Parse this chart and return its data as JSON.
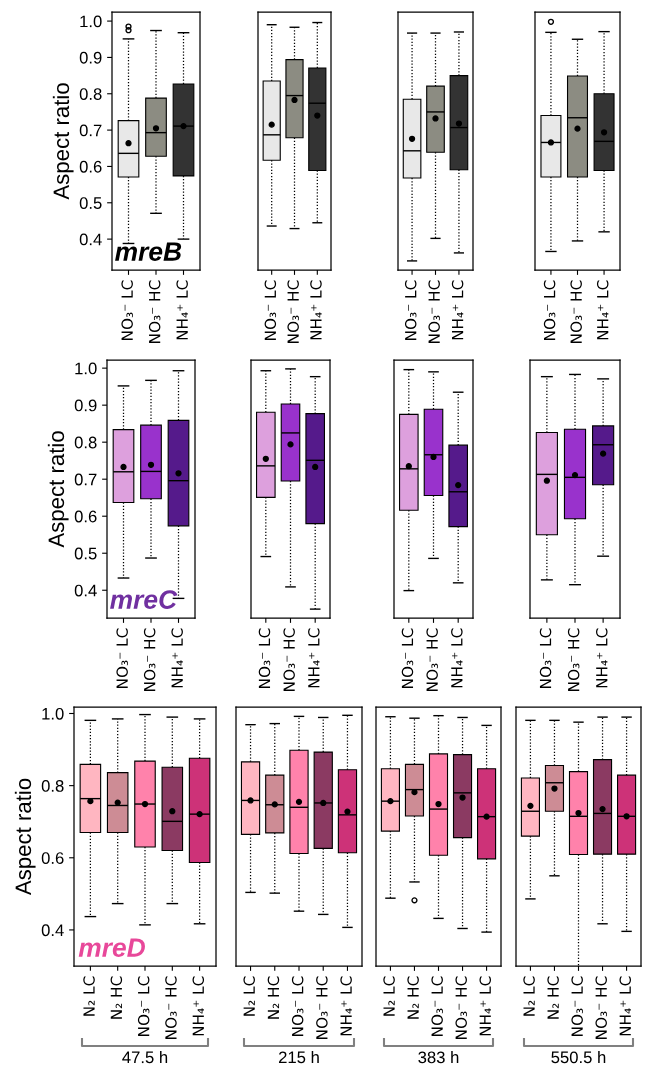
{
  "chart_data": [
    {
      "type": "box",
      "categories": [
        "NO₃⁻ LC",
        "NO₃⁻ HC",
        "NH₄⁺ LC"
      ],
      "ylabel": "Aspect ratio",
      "annotations": [
        "mreB"
      ],
      "ylim": [
        0.315,
        1.025
      ],
      "yticks": [
        {
          "value": 0.4,
          "label": "0.4"
        },
        {
          "value": 0.5,
          "label": "0.5"
        },
        {
          "value": 0.6,
          "label": "0.6"
        },
        {
          "value": 0.7,
          "label": "0.7"
        },
        {
          "value": 0.8,
          "label": "0.8"
        },
        {
          "value": 0.9,
          "label": "0.9"
        },
        {
          "value": 1.0,
          "label": "1.0"
        }
      ],
      "colors": [
        "#e8e8e8",
        "#8c8c82",
        "#333333"
      ],
      "grid": false,
      "boxes": [
        {
          "low": 0.388,
          "q1": 0.571,
          "median": 0.636,
          "q3": 0.726,
          "high": 0.951,
          "mean": 0.664,
          "outliers": [
            0.975,
            0.985
          ]
        },
        {
          "low": 0.471,
          "q1": 0.628,
          "median": 0.693,
          "q3": 0.788,
          "high": 0.974,
          "mean": 0.705
        },
        {
          "low": 0.4,
          "q1": 0.574,
          "median": 0.711,
          "q3": 0.827,
          "high": 0.968,
          "mean": 0.711
        }
      ]
    },
    {
      "type": "box",
      "categories": [
        "NO₃⁻ LC",
        "NO₃⁻ HC",
        "NH₄⁺ LC"
      ],
      "ylim": [
        0.315,
        1.025
      ],
      "tick_labels": "x",
      "colors": [
        "#e8e8e8",
        "#8c8c82",
        "#333333"
      ],
      "grid": false,
      "boxes": [
        {
          "low": 0.436,
          "q1": 0.617,
          "median": 0.687,
          "q3": 0.835,
          "high": 0.99,
          "mean": 0.715
        },
        {
          "low": 0.429,
          "q1": 0.679,
          "median": 0.795,
          "q3": 0.894,
          "high": 0.983,
          "mean": 0.783
        },
        {
          "low": 0.445,
          "q1": 0.589,
          "median": 0.774,
          "q3": 0.871,
          "high": 0.996,
          "mean": 0.74
        }
      ]
    },
    {
      "type": "box",
      "categories": [
        "NO₃⁻ LC",
        "NO₃⁻ HC",
        "NH₄⁺ LC"
      ],
      "ylim": [
        0.315,
        1.025
      ],
      "tick_labels": "x",
      "colors": [
        "#e8e8e8",
        "#8c8c82",
        "#333333"
      ],
      "grid": false,
      "boxes": [
        {
          "low": 0.34,
          "q1": 0.568,
          "median": 0.643,
          "q3": 0.785,
          "high": 0.967,
          "mean": 0.676
        },
        {
          "low": 0.402,
          "q1": 0.639,
          "median": 0.75,
          "q3": 0.821,
          "high": 0.967,
          "mean": 0.732
        },
        {
          "low": 0.362,
          "q1": 0.591,
          "median": 0.707,
          "q3": 0.85,
          "high": 0.97,
          "mean": 0.718
        }
      ]
    },
    {
      "type": "box",
      "categories": [
        "NO₃⁻ LC",
        "NO₃⁻ HC",
        "NH₄⁺ LC"
      ],
      "ylim": [
        0.315,
        1.025
      ],
      "tick_labels": "x",
      "colors": [
        "#e8e8e8",
        "#8c8c82",
        "#333333"
      ],
      "grid": false,
      "boxes": [
        {
          "low": 0.366,
          "q1": 0.571,
          "median": 0.666,
          "q3": 0.74,
          "high": 0.969,
          "mean": 0.666,
          "outliers": [
            0.998
          ]
        },
        {
          "low": 0.395,
          "q1": 0.571,
          "median": 0.734,
          "q3": 0.849,
          "high": 0.95,
          "mean": 0.704
        },
        {
          "low": 0.42,
          "q1": 0.589,
          "median": 0.669,
          "q3": 0.8,
          "high": 0.971,
          "mean": 0.694
        }
      ]
    },
    {
      "type": "box",
      "categories": [
        "NO₃⁻ LC",
        "NO₃⁻ HC",
        "NH₄⁺ LC"
      ],
      "ylabel": "Aspect ratio",
      "annotations": [
        "mreC"
      ],
      "ylim": [
        0.325,
        1.022
      ],
      "yticks": [
        {
          "value": 0.4,
          "label": "0.4"
        },
        {
          "value": 0.5,
          "label": "0.5"
        },
        {
          "value": 0.6,
          "label": "0.6"
        },
        {
          "value": 0.7,
          "label": "0.7"
        },
        {
          "value": 0.8,
          "label": "0.8"
        },
        {
          "value": 0.9,
          "label": "0.9"
        },
        {
          "value": 1.0,
          "label": "1.0"
        }
      ],
      "colors": [
        "#dda0dd",
        "#9932cc",
        "#551a8b"
      ],
      "grid": false,
      "boxes": [
        {
          "low": 0.433,
          "q1": 0.637,
          "median": 0.72,
          "q3": 0.834,
          "high": 0.952,
          "mean": 0.733
        },
        {
          "low": 0.487,
          "q1": 0.647,
          "median": 0.721,
          "q3": 0.846,
          "high": 0.967,
          "mean": 0.739
        },
        {
          "low": 0.378,
          "q1": 0.574,
          "median": 0.696,
          "q3": 0.859,
          "high": 0.993,
          "mean": 0.716
        }
      ]
    },
    {
      "type": "box",
      "categories": [
        "NO₃⁻ LC",
        "NO₃⁻ HC",
        "NH₄⁺ LC"
      ],
      "ylim": [
        0.325,
        1.022
      ],
      "tick_labels": "x",
      "colors": [
        "#dda0dd",
        "#9932cc",
        "#551a8b"
      ],
      "grid": false,
      "boxes": [
        {
          "low": 0.491,
          "q1": 0.651,
          "median": 0.736,
          "q3": 0.881,
          "high": 0.993,
          "mean": 0.755
        },
        {
          "low": 0.409,
          "q1": 0.695,
          "median": 0.825,
          "q3": 0.903,
          "high": 0.998,
          "mean": 0.794
        },
        {
          "low": 0.349,
          "q1": 0.58,
          "median": 0.751,
          "q3": 0.877,
          "high": 0.977,
          "mean": 0.733
        }
      ]
    },
    {
      "type": "box",
      "categories": [
        "NO₃⁻ LC",
        "NO₃⁻ HC",
        "NH₄⁺ LC"
      ],
      "ylim": [
        0.325,
        1.022
      ],
      "tick_labels": "x",
      "colors": [
        "#dda0dd",
        "#9932cc",
        "#551a8b"
      ],
      "grid": false,
      "boxes": [
        {
          "low": 0.399,
          "q1": 0.616,
          "median": 0.728,
          "q3": 0.875,
          "high": 0.996,
          "mean": 0.735
        },
        {
          "low": 0.486,
          "q1": 0.656,
          "median": 0.766,
          "q3": 0.889,
          "high": 0.99,
          "mean": 0.76
        },
        {
          "low": 0.42,
          "q1": 0.572,
          "median": 0.666,
          "q3": 0.792,
          "high": 0.935,
          "mean": 0.684
        }
      ]
    },
    {
      "type": "box",
      "categories": [
        "NO₃⁻ LC",
        "NO₃⁻ HC",
        "NH₄⁺ LC"
      ],
      "ylim": [
        0.325,
        1.022
      ],
      "tick_labels": "x",
      "colors": [
        "#dda0dd",
        "#9932cc",
        "#551a8b"
      ],
      "grid": false,
      "boxes": [
        {
          "low": 0.428,
          "q1": 0.55,
          "median": 0.713,
          "q3": 0.826,
          "high": 0.977,
          "mean": 0.696
        },
        {
          "low": 0.415,
          "q1": 0.593,
          "median": 0.705,
          "q3": 0.835,
          "high": 0.983,
          "mean": 0.711
        },
        {
          "low": 0.492,
          "q1": 0.685,
          "median": 0.793,
          "q3": 0.844,
          "high": 0.971,
          "mean": 0.769
        }
      ]
    },
    {
      "type": "box",
      "categories": [
        "N₂ LC",
        "N₂ HC",
        "NO₃⁻ LC",
        "NO₃⁻ HC",
        "NH₄⁺ LC"
      ],
      "ylabel": "Aspect ratio",
      "annotations": [
        "mreD",
        "47.5 h"
      ],
      "ylim": [
        0.3,
        1.018
      ],
      "yticks": [
        {
          "value": 0.4,
          "label": "0.4"
        },
        {
          "value": 0.6,
          "label": "0.6"
        },
        {
          "value": 0.8,
          "label": "0.8"
        },
        {
          "value": 1.0,
          "label": "1.0"
        }
      ],
      "colors": [
        "#ffb6c1",
        "#cd8c95",
        "#ff82ab",
        "#8b3a62",
        "#cd3278"
      ],
      "grid": false,
      "boxes": [
        {
          "low": 0.437,
          "q1": 0.67,
          "median": 0.764,
          "q3": 0.859,
          "high": 0.981,
          "mean": 0.757
        },
        {
          "low": 0.473,
          "q1": 0.67,
          "median": 0.745,
          "q3": 0.836,
          "high": 0.985,
          "mean": 0.753
        },
        {
          "low": 0.414,
          "q1": 0.63,
          "median": 0.749,
          "q3": 0.868,
          "high": 0.997,
          "mean": 0.749
        },
        {
          "low": 0.473,
          "q1": 0.62,
          "median": 0.701,
          "q3": 0.851,
          "high": 0.99,
          "mean": 0.729
        },
        {
          "low": 0.417,
          "q1": 0.587,
          "median": 0.721,
          "q3": 0.876,
          "high": 0.985,
          "mean": 0.721
        }
      ]
    },
    {
      "type": "box",
      "categories": [
        "N₂ LC",
        "N₂ HC",
        "NO₃⁻ LC",
        "NO₃⁻ HC",
        "NH₄⁺ LC"
      ],
      "annotations": [
        "215 h"
      ],
      "ylim": [
        0.3,
        1.018
      ],
      "tick_labels": "x",
      "colors": [
        "#ffb6c1",
        "#cd8c95",
        "#ff82ab",
        "#8b3a62",
        "#cd3278"
      ],
      "grid": false,
      "boxes": [
        {
          "low": 0.504,
          "q1": 0.665,
          "median": 0.759,
          "q3": 0.866,
          "high": 0.969,
          "mean": 0.759
        },
        {
          "low": 0.502,
          "q1": 0.669,
          "median": 0.747,
          "q3": 0.829,
          "high": 0.972,
          "mean": 0.748
        },
        {
          "low": 0.452,
          "q1": 0.612,
          "median": 0.74,
          "q3": 0.898,
          "high": 0.992,
          "mean": 0.755
        },
        {
          "low": 0.443,
          "q1": 0.626,
          "median": 0.752,
          "q3": 0.893,
          "high": 0.989,
          "mean": 0.752
        },
        {
          "low": 0.407,
          "q1": 0.614,
          "median": 0.719,
          "q3": 0.844,
          "high": 0.995,
          "mean": 0.728
        }
      ]
    },
    {
      "type": "box",
      "categories": [
        "N₂ LC",
        "N₂ HC",
        "NO₃⁻ LC",
        "NO₃⁻ HC",
        "NH₄⁺ LC"
      ],
      "annotations": [
        "383 h"
      ],
      "ylim": [
        0.3,
        1.018
      ],
      "tick_labels": "x",
      "colors": [
        "#ffb6c1",
        "#cd8c95",
        "#ff82ab",
        "#8b3a62",
        "#cd3278"
      ],
      "grid": false,
      "boxes": [
        {
          "low": 0.488,
          "q1": 0.674,
          "median": 0.757,
          "q3": 0.847,
          "high": 0.991,
          "mean": 0.757
        },
        {
          "low": 0.533,
          "q1": 0.716,
          "median": 0.789,
          "q3": 0.859,
          "high": 0.987,
          "mean": 0.782,
          "outliers": [
            0.482
          ]
        },
        {
          "low": 0.432,
          "q1": 0.607,
          "median": 0.735,
          "q3": 0.888,
          "high": 0.994,
          "mean": 0.749
        },
        {
          "low": 0.404,
          "q1": 0.656,
          "median": 0.78,
          "q3": 0.886,
          "high": 0.989,
          "mean": 0.767
        },
        {
          "low": 0.394,
          "q1": 0.597,
          "median": 0.714,
          "q3": 0.847,
          "high": 0.967,
          "mean": 0.714
        }
      ]
    },
    {
      "type": "box",
      "categories": [
        "N₂ LC",
        "N₂ HC",
        "NO₃⁻ LC",
        "NO₃⁻ HC",
        "NH₄⁺ LC"
      ],
      "annotations": [
        "550.5 h"
      ],
      "ylim": [
        0.3,
        1.018
      ],
      "tick_labels": "x",
      "colors": [
        "#ffb6c1",
        "#cd8c95",
        "#ff82ab",
        "#8b3a62",
        "#cd3278"
      ],
      "grid": false,
      "boxes": [
        {
          "low": 0.486,
          "q1": 0.66,
          "median": 0.729,
          "q3": 0.821,
          "high": 0.981,
          "mean": 0.744
        },
        {
          "low": 0.55,
          "q1": 0.729,
          "median": 0.808,
          "q3": 0.856,
          "high": 0.981,
          "mean": 0.792
        },
        {
          "low": 0.276,
          "q1": 0.609,
          "median": 0.715,
          "q3": 0.839,
          "high": 0.976,
          "mean": 0.724
        },
        {
          "low": 0.417,
          "q1": 0.61,
          "median": 0.723,
          "q3": 0.872,
          "high": 0.99,
          "mean": 0.735
        },
        {
          "low": 0.396,
          "q1": 0.61,
          "median": 0.715,
          "q3": 0.829,
          "high": 0.99,
          "mean": 0.715
        }
      ]
    }
  ]
}
